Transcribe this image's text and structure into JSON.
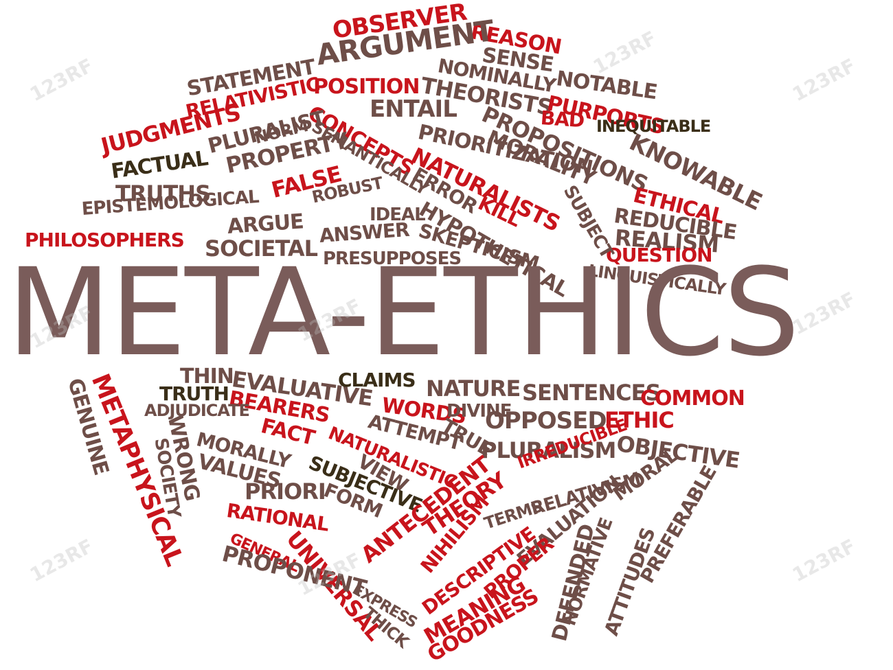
{
  "title": "META-ETHICS",
  "colors": {
    "red": "#c8141c",
    "brown": "#6e4e48",
    "dark": "#3a2e18",
    "title": "#7a5c5a"
  },
  "watermark": "123RF",
  "words": [
    {
      "text": "OBSERVER",
      "c": "red"
    },
    {
      "text": "REASON",
      "c": "red"
    },
    {
      "text": "ARGUMENT",
      "c": "brown"
    },
    {
      "text": "SENSE",
      "c": "brown"
    },
    {
      "text": "NOTABLE",
      "c": "brown"
    },
    {
      "text": "NOMINALLY",
      "c": "brown"
    },
    {
      "text": "STATEMENT",
      "c": "brown"
    },
    {
      "text": "POSITION",
      "c": "red"
    },
    {
      "text": "RELATIVISTIC",
      "c": "red"
    },
    {
      "text": "THEORISTS",
      "c": "brown"
    },
    {
      "text": "PURPORTS",
      "c": "red"
    },
    {
      "text": "ENTAIL",
      "c": "brown"
    },
    {
      "text": "CONCEPTS",
      "c": "red"
    },
    {
      "text": "BAD",
      "c": "red"
    },
    {
      "text": "PROPOSITIONS",
      "c": "brown"
    },
    {
      "text": "INEQUITABLE",
      "c": "dark"
    },
    {
      "text": "NORM",
      "c": "brown"
    },
    {
      "text": "SEMANTICALLY",
      "c": "brown"
    },
    {
      "text": "PRIORITIZATION",
      "c": "brown"
    },
    {
      "text": "MORALITY",
      "c": "brown"
    },
    {
      "text": "KNOWABLE",
      "c": "brown"
    },
    {
      "text": "JUDGMENTS",
      "c": "red"
    },
    {
      "text": "PLURALIST",
      "c": "brown"
    },
    {
      "text": "FACTUAL",
      "c": "dark"
    },
    {
      "text": "PROPERTY",
      "c": "brown"
    },
    {
      "text": "NATURALISTS",
      "c": "red"
    },
    {
      "text": "TRUTHS",
      "c": "brown"
    },
    {
      "text": "ERROR",
      "c": "brown"
    },
    {
      "text": "ETHICAL",
      "c": "red"
    },
    {
      "text": "FALSE",
      "c": "red"
    },
    {
      "text": "EPISTEMOLOGICAL",
      "c": "brown"
    },
    {
      "text": "ROBUST",
      "c": "brown"
    },
    {
      "text": "KILL",
      "c": "red"
    },
    {
      "text": "REDUCIBLE",
      "c": "brown"
    },
    {
      "text": "IDEAL",
      "c": "brown"
    },
    {
      "text": "HYPOTHETICAL",
      "c": "brown"
    },
    {
      "text": "REALISM",
      "c": "brown"
    },
    {
      "text": "ARGUE",
      "c": "brown"
    },
    {
      "text": "ANSWER",
      "c": "brown"
    },
    {
      "text": "SKEPTICISM",
      "c": "brown"
    },
    {
      "text": "PHILOSOPHERS",
      "c": "red"
    },
    {
      "text": "SOCIETAL",
      "c": "brown"
    },
    {
      "text": "PRESUPPOSES",
      "c": "brown"
    },
    {
      "text": "QUESTION",
      "c": "red"
    },
    {
      "text": "LINGUISTICALLY",
      "c": "brown"
    },
    {
      "text": "SUBJECT",
      "c": "brown"
    },
    {
      "text": "THIN",
      "c": "brown"
    },
    {
      "text": "EVALUATIVE",
      "c": "brown"
    },
    {
      "text": "CLAIMS",
      "c": "dark"
    },
    {
      "text": "NATURE",
      "c": "brown"
    },
    {
      "text": "SENTENCES",
      "c": "brown"
    },
    {
      "text": "COMMON",
      "c": "red"
    },
    {
      "text": "TRUTH",
      "c": "dark"
    },
    {
      "text": "BEARERS",
      "c": "red"
    },
    {
      "text": "WORDS",
      "c": "red"
    },
    {
      "text": "DIVINE",
      "c": "brown"
    },
    {
      "text": "OPPOSED",
      "c": "brown"
    },
    {
      "text": "ETHIC",
      "c": "red"
    },
    {
      "text": "ADJUDICATE",
      "c": "brown"
    },
    {
      "text": "FACT",
      "c": "red"
    },
    {
      "text": "ATTEMPT",
      "c": "brown"
    },
    {
      "text": "TRUE",
      "c": "brown"
    },
    {
      "text": "OBJECTIVE",
      "c": "brown"
    },
    {
      "text": "MORALLY",
      "c": "brown"
    },
    {
      "text": "NATURALISTIC",
      "c": "red"
    },
    {
      "text": "PLURALISM",
      "c": "brown"
    },
    {
      "text": "VALUES",
      "c": "brown"
    },
    {
      "text": "VIEW",
      "c": "brown"
    },
    {
      "text": "IRREDUCIBLE",
      "c": "red"
    },
    {
      "text": "SUBJECTIVE",
      "c": "dark"
    },
    {
      "text": "PRIORI",
      "c": "brown"
    },
    {
      "text": "FORM",
      "c": "brown"
    },
    {
      "text": "RATIONAL",
      "c": "red"
    },
    {
      "text": "ANTECEDENT",
      "c": "red"
    },
    {
      "text": "THEORY",
      "c": "red"
    },
    {
      "text": "RELATIVISM",
      "c": "brown"
    },
    {
      "text": "MORAL",
      "c": "brown"
    },
    {
      "text": "PREFERABLE",
      "c": "brown"
    },
    {
      "text": "TERMS",
      "c": "brown"
    },
    {
      "text": "EVALUATION",
      "c": "brown"
    },
    {
      "text": "GENERAL",
      "c": "red"
    },
    {
      "text": "UNIVERSAL",
      "c": "red"
    },
    {
      "text": "PROPONENT",
      "c": "brown"
    },
    {
      "text": "NIHILISM",
      "c": "red"
    },
    {
      "text": "DESCRIPTIVE",
      "c": "red"
    },
    {
      "text": "NORMATIVE",
      "c": "brown"
    },
    {
      "text": "ATTITUDES",
      "c": "brown"
    },
    {
      "text": "PROPER",
      "c": "red"
    },
    {
      "text": "EXPRESS",
      "c": "brown"
    },
    {
      "text": "THICK",
      "c": "brown"
    },
    {
      "text": "MEANING",
      "c": "red"
    },
    {
      "text": "GOODNESS",
      "c": "red"
    },
    {
      "text": "DEFENDED",
      "c": "brown"
    },
    {
      "text": "METAPHYSICAL",
      "c": "red"
    },
    {
      "text": "GENUINE",
      "c": "brown"
    },
    {
      "text": "WRONG",
      "c": "brown"
    },
    {
      "text": "SOCIETY",
      "c": "brown"
    }
  ]
}
